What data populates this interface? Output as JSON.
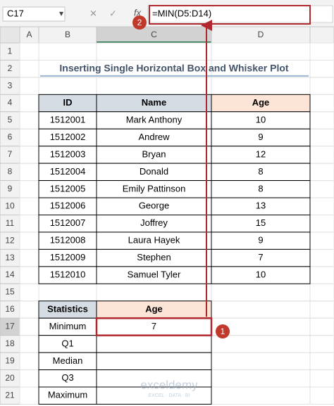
{
  "name_box": "C17",
  "fx_label": "fx",
  "formula": "=MIN(D5:D14)",
  "columns": [
    "A",
    "B",
    "C",
    "D"
  ],
  "rows": [
    1,
    2,
    3,
    4,
    5,
    6,
    7,
    8,
    9,
    10,
    11,
    12,
    13,
    14,
    15,
    16,
    17,
    18,
    19,
    20,
    21
  ],
  "title": "Inserting Single Horizontal Box and Whisker Plot",
  "table": {
    "header": [
      "ID",
      "Name",
      "Age"
    ],
    "rows": [
      [
        1512001,
        "Mark Anthony",
        10
      ],
      [
        1512002,
        "Andrew",
        9
      ],
      [
        1512003,
        "Bryan",
        12
      ],
      [
        1512004,
        "Donald",
        8
      ],
      [
        1512005,
        "Emily Pattinson",
        8
      ],
      [
        1512006,
        "George",
        13
      ],
      [
        1512007,
        "Joffrey",
        15
      ],
      [
        1512008,
        "Laura Hayek",
        9
      ],
      [
        1512009,
        "Stephen",
        7
      ],
      [
        1512010,
        "Samuel Tyler",
        10
      ]
    ]
  },
  "stats": {
    "header": [
      "Statistics",
      "Age"
    ],
    "labels": [
      "Minimum",
      "Q1",
      "Median",
      "Q3",
      "Maximum"
    ],
    "values": [
      7
    ]
  },
  "callouts": [
    1,
    2
  ],
  "watermark": {
    "brand": "exceldemy",
    "tagline": "EXCEL · DATA · BI"
  }
}
